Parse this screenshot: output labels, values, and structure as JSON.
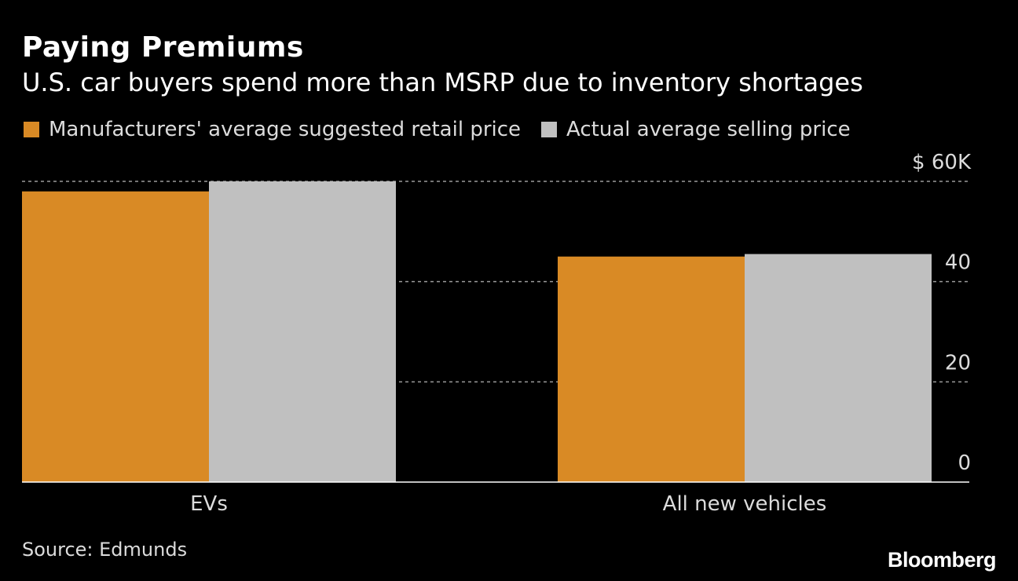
{
  "header": {
    "title": "Paying Premiums",
    "subtitle": "U.S. car buyers spend more than MSRP due to inventory shortages"
  },
  "footer": {
    "source": "Source: Edmunds",
    "brand": "Bloomberg"
  },
  "chart_data": {
    "type": "bar",
    "categories": [
      "EVs",
      "All new vehicles"
    ],
    "series": [
      {
        "name": "Manufacturers' average suggested retail price",
        "color": "#d98a25",
        "values": [
          58,
          45
        ]
      },
      {
        "name": "Actual average selling price",
        "color": "#c0c0c0",
        "values": [
          60,
          45.5
        ]
      }
    ],
    "ylim": [
      0,
      60
    ],
    "yticks": [
      0,
      20,
      40,
      60
    ],
    "ytick_labels": [
      "0",
      "20",
      "40",
      "$ 60K"
    ],
    "grid": true,
    "legend_position": "top-left",
    "xlabel": "",
    "ylabel": ""
  }
}
